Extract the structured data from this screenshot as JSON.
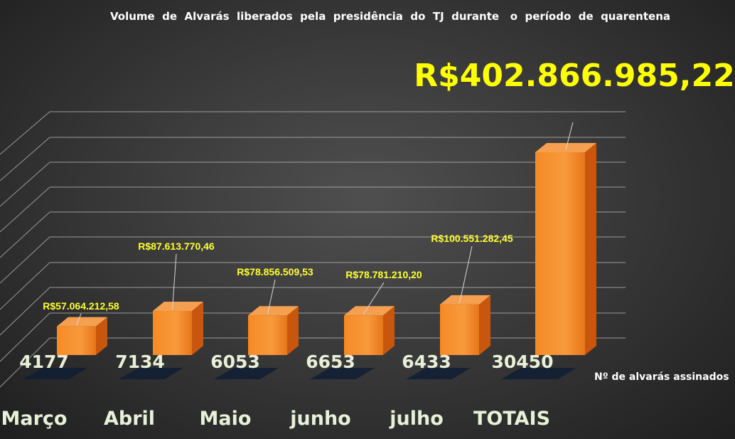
{
  "colors": {
    "bar_front": "#f0801c",
    "bar_top": "#f5a050",
    "bar_side": "#c8560c",
    "label": "#ffff33",
    "total": "#ffff00",
    "counts": "#e8f0d8"
  },
  "chart_data": {
    "type": "bar",
    "title": "Volume  de  Alvarás  liberados  pela  presidência  do  TJ  durante   o  período  de  quarentena",
    "total_label": "R$402.866.985,22",
    "count_axis_label": "Nº de alvarás assinados",
    "categories": [
      "Março",
      "Abril",
      "Maio",
      "junho",
      "julho",
      "TOTAIS"
    ],
    "counts": [
      "4177",
      "7134",
      "6053",
      "6653",
      "6433",
      "30450"
    ],
    "value_labels": [
      "R$57.064.212,58",
      "R$87.613.770,46",
      "R$78.856.509,53",
      "R$78.781.210,20",
      "R$100.551.282,45",
      "R$402.866.985,22"
    ],
    "series": [
      {
        "values": [
          57064212.58,
          87613770.46,
          78856509.53,
          78781210.2,
          100551282.45,
          402866985.22
        ]
      }
    ],
    "grid": true,
    "perspective": "3d"
  }
}
